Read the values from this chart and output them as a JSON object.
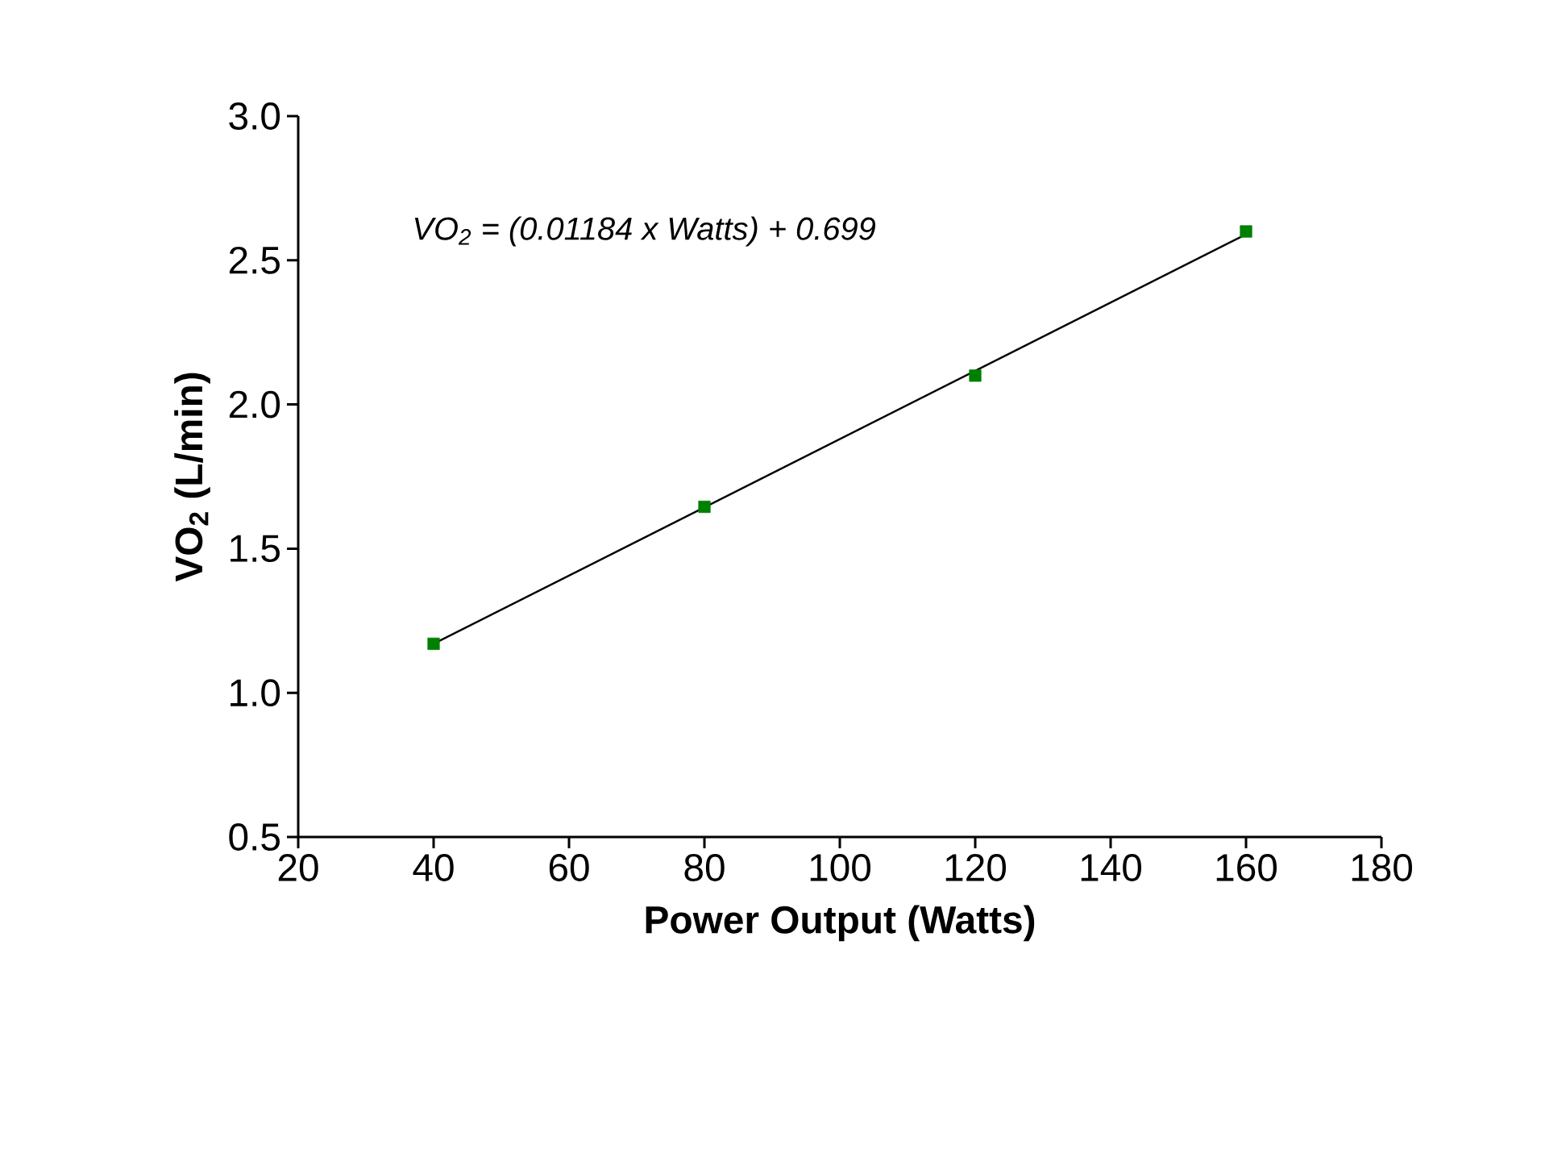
{
  "chart_data": {
    "type": "scatter",
    "xlabel": "Power Output (Watts)",
    "ylabel": "VO$_{2}$ (L/min)",
    "xlim": [
      20,
      180
    ],
    "xticks": [
      20,
      40,
      60,
      80,
      100,
      120,
      140,
      160,
      180
    ],
    "ylim": [
      0.5,
      3.0
    ],
    "yticks": [
      {
        "value": 0.5,
        "label": "0.5"
      },
      {
        "value": 1.0,
        "label": "1.0"
      },
      {
        "value": 1.5,
        "label": "1.5"
      },
      {
        "value": 2.0,
        "label": "2.0"
      },
      {
        "value": 2.5,
        "label": "2.5"
      },
      {
        "value": 3.0,
        "label": "3.0"
      }
    ],
    "grid": false,
    "series": [
      {
        "type": "line",
        "color": "#000000",
        "x": [
          40,
          160
        ],
        "values": [
          1.17,
          2.59
        ],
        "marker": "none",
        "line_style": "solid"
      },
      {
        "color": "#008000",
        "x": [
          40,
          80,
          120,
          160
        ],
        "values": [
          1.17,
          1.645,
          2.1,
          2.6
        ],
        "marker": "square"
      }
    ],
    "annotations": [
      "VO$_{2}$ = (0.01184 x Watts) + 0.699"
    ]
  }
}
